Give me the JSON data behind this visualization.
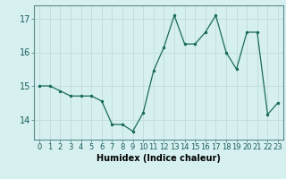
{
  "x": [
    0,
    1,
    2,
    3,
    4,
    5,
    6,
    7,
    8,
    9,
    10,
    11,
    12,
    13,
    14,
    15,
    16,
    17,
    18,
    19,
    20,
    21,
    22,
    23
  ],
  "y": [
    15.0,
    15.0,
    14.85,
    14.7,
    14.7,
    14.7,
    14.55,
    13.85,
    13.85,
    13.65,
    14.2,
    15.45,
    16.15,
    17.1,
    16.25,
    16.25,
    16.6,
    17.1,
    16.0,
    15.5,
    16.6,
    16.6,
    14.15,
    14.5
  ],
  "xlabel": "Humidex (Indice chaleur)",
  "line_color": "#1a6b5a",
  "marker_color": "#1a6b5a",
  "bg_color": "#d6f0f0",
  "grid_color": "#c4dede",
  "spine_color": "#5a8a8a",
  "ylim": [
    13.4,
    17.4
  ],
  "xlim": [
    -0.5,
    23.5
  ],
  "yticks": [
    14,
    15,
    16,
    17
  ],
  "xticks": [
    0,
    1,
    2,
    3,
    4,
    5,
    6,
    7,
    8,
    9,
    10,
    11,
    12,
    13,
    14,
    15,
    16,
    17,
    18,
    19,
    20,
    21,
    22,
    23
  ],
  "xlabel_fontsize": 7,
  "tick_fontsize": 6
}
